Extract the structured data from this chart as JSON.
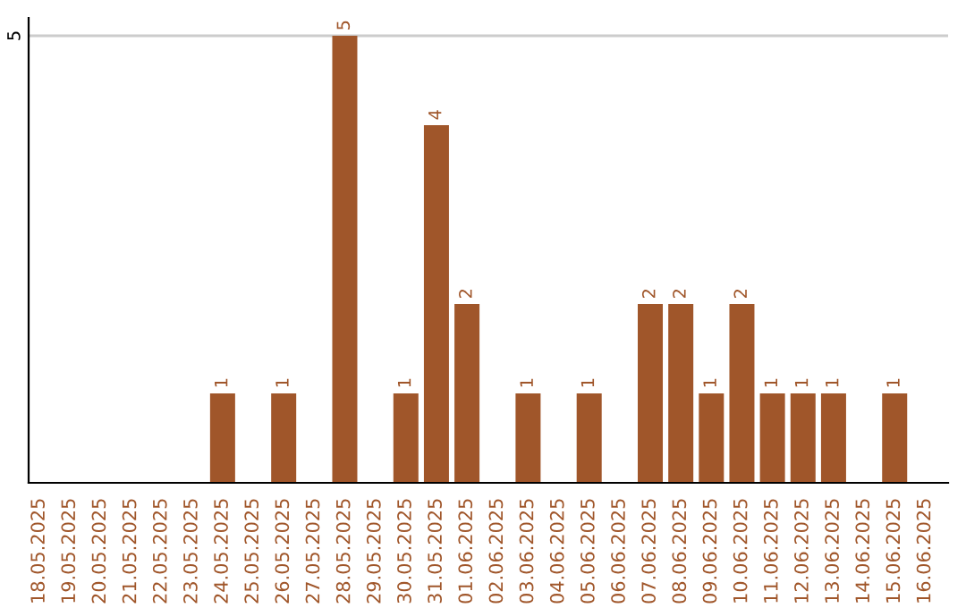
{
  "chart_data": {
    "type": "bar",
    "categories": [
      "18.05.2025",
      "19.05.2025",
      "20.05.2025",
      "21.05.2025",
      "22.05.2025",
      "23.05.2025",
      "24.05.2025",
      "25.05.2025",
      "26.05.2025",
      "27.05.2025",
      "28.05.2025",
      "29.05.2025",
      "30.05.2025",
      "31.05.2025",
      "01.06.2025",
      "02.06.2025",
      "03.06.2025",
      "04.06.2025",
      "05.06.2025",
      "06.06.2025",
      "07.06.2025",
      "08.06.2025",
      "09.06.2025",
      "10.06.2025",
      "11.06.2025",
      "12.06.2025",
      "13.06.2025",
      "14.06.2025",
      "15.06.2025",
      "16.06.2025"
    ],
    "values": [
      0,
      0,
      0,
      0,
      0,
      0,
      1,
      0,
      1,
      0,
      5,
      0,
      1,
      4,
      2,
      0,
      1,
      0,
      1,
      0,
      2,
      2,
      1,
      2,
      1,
      1,
      1,
      0,
      1,
      0
    ],
    "value_labels": [
      null,
      null,
      null,
      null,
      null,
      null,
      "1",
      null,
      "1",
      null,
      "5",
      null,
      "1",
      "4",
      "2",
      null,
      "1",
      null,
      "1",
      null,
      "2",
      "2",
      "1",
      "2",
      "1",
      "1",
      "1",
      null,
      "1",
      null
    ],
    "color": "#a0562a",
    "ylim": [
      0,
      5.2
    ],
    "yticks": [
      5
    ],
    "grid": "y"
  }
}
